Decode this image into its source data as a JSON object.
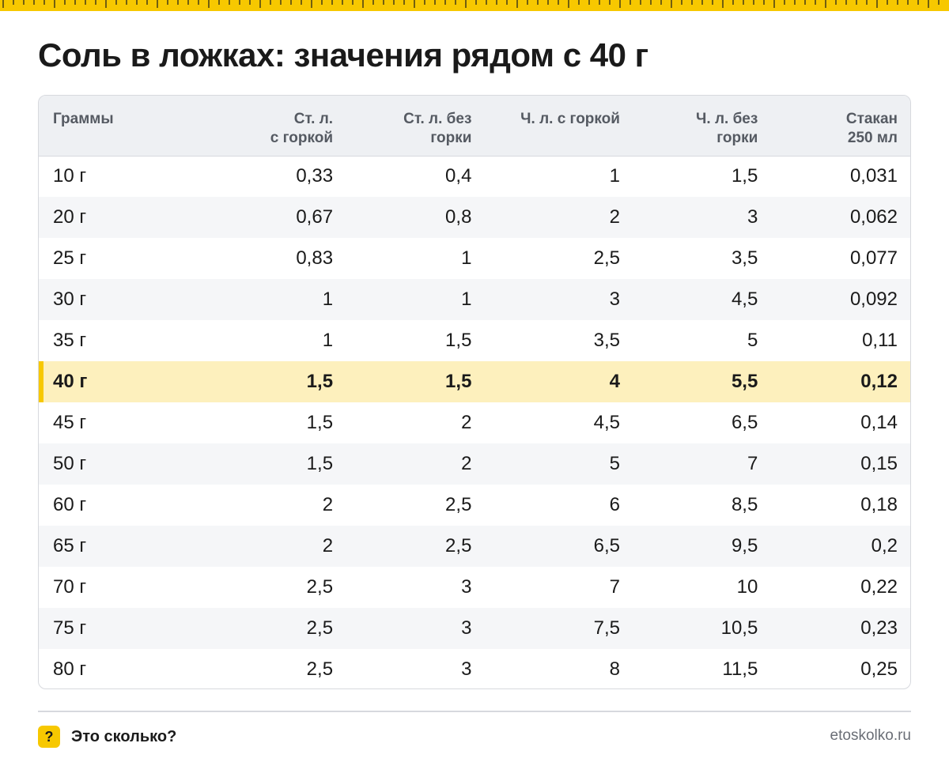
{
  "title": "Соль в ложках: значения рядом с 40 г",
  "colors": {
    "accent": "#f7c800",
    "highlight_row": "#fdf0bd",
    "header_bg": "#eef0f3",
    "zebra_bg": "#f5f6f8"
  },
  "table": {
    "headers": [
      [
        "Граммы"
      ],
      [
        "Ст. л.",
        "с горкой"
      ],
      [
        "Ст. л. без",
        "горки"
      ],
      [
        "Ч. л. с горкой"
      ],
      [
        "Ч. л. без",
        "горки"
      ],
      [
        "Стакан",
        "250 мл"
      ]
    ],
    "highlighted_row": "40 г",
    "rows": [
      [
        "10 г",
        "0,33",
        "0,4",
        "1",
        "1,5",
        "0,031"
      ],
      [
        "20 г",
        "0,67",
        "0,8",
        "2",
        "3",
        "0,062"
      ],
      [
        "25 г",
        "0,83",
        "1",
        "2,5",
        "3,5",
        "0,077"
      ],
      [
        "30 г",
        "1",
        "1",
        "3",
        "4,5",
        "0,092"
      ],
      [
        "35 г",
        "1",
        "1,5",
        "3,5",
        "5",
        "0,11"
      ],
      [
        "40 г",
        "1,5",
        "1,5",
        "4",
        "5,5",
        "0,12"
      ],
      [
        "45 г",
        "1,5",
        "2",
        "4,5",
        "6,5",
        "0,14"
      ],
      [
        "50 г",
        "1,5",
        "2",
        "5",
        "7",
        "0,15"
      ],
      [
        "60 г",
        "2",
        "2,5",
        "6",
        "8,5",
        "0,18"
      ],
      [
        "65 г",
        "2",
        "2,5",
        "6,5",
        "9,5",
        "0,2"
      ],
      [
        "70 г",
        "2,5",
        "3",
        "7",
        "10",
        "0,22"
      ],
      [
        "75 г",
        "2,5",
        "3",
        "7,5",
        "10,5",
        "0,23"
      ],
      [
        "80 г",
        "2,5",
        "3",
        "8",
        "11,5",
        "0,25"
      ]
    ]
  },
  "footer": {
    "brand_icon": "question-mark-icon",
    "brand_icon_glyph": "?",
    "brand_name": "Это сколько?",
    "site": "etoskolko.ru"
  }
}
